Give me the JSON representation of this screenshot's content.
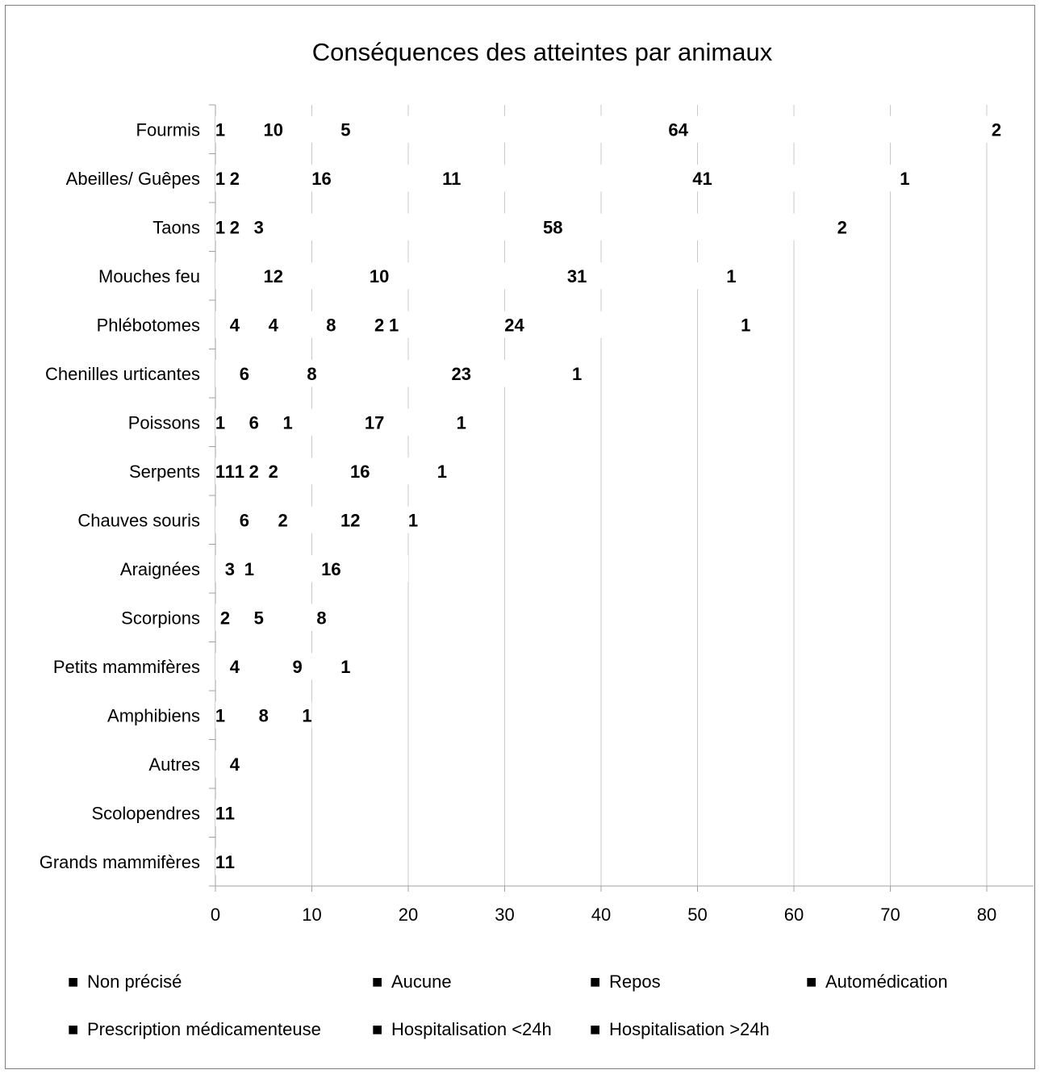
{
  "chart_data": {
    "type": "bar",
    "orientation": "horizontal",
    "stacked": true,
    "title": "Conséquences des atteintes par animaux",
    "xlabel": "",
    "ylabel": "",
    "xlim": [
      0,
      85
    ],
    "x_ticks": [
      0,
      10,
      20,
      30,
      40,
      50,
      60,
      70,
      80
    ],
    "grid": true,
    "legend_position": "bottom",
    "categories": [
      "Fourmis",
      "Abeilles/ Guêpes",
      "Taons",
      "Mouches feu",
      "Phlébotomes",
      "Chenilles urticantes",
      "Poissons",
      "Serpents",
      "Chauves souris",
      "Araignées",
      "Scorpions",
      "Petits mammifères",
      "Amphibiens",
      "Autres",
      "Scolopendres",
      "Grands mammifères"
    ],
    "series": [
      {
        "name": "Non précisé",
        "color": "#000000",
        "values": [
          1,
          1,
          1,
          0,
          0,
          0,
          1,
          1,
          0,
          0,
          0,
          0,
          1,
          0,
          1,
          1
        ]
      },
      {
        "name": "Aucune",
        "color": "#000000",
        "values": [
          10,
          2,
          2,
          0,
          4,
          6,
          6,
          1,
          6,
          3,
          2,
          4,
          8,
          4,
          1,
          1
        ]
      },
      {
        "name": "Repos",
        "color": "#000000",
        "values": [
          5,
          16,
          3,
          12,
          4,
          8,
          1,
          1,
          2,
          1,
          5,
          9,
          1,
          0,
          0,
          0
        ]
      },
      {
        "name": "Automédication",
        "color": "#000000",
        "values": [
          0,
          11,
          0,
          10,
          8,
          0,
          0,
          2,
          0,
          0,
          0,
          0,
          0,
          0,
          0,
          0
        ]
      },
      {
        "name": "Prescription médicamenteuse",
        "color": "#000000",
        "values": [
          64,
          41,
          58,
          31,
          2,
          23,
          17,
          2,
          12,
          16,
          8,
          1,
          0,
          0,
          0,
          0
        ]
      },
      {
        "name": "Hospitalisation <24h",
        "color": "#000000",
        "values": [
          0,
          0,
          0,
          0,
          1,
          0,
          0,
          16,
          0,
          0,
          0,
          0,
          0,
          0,
          0,
          0
        ]
      },
      {
        "name": "Hospitalisation >24h",
        "color": "#000000",
        "values": [
          2,
          1,
          2,
          1,
          24,
          1,
          1,
          1,
          1,
          0,
          0,
          0,
          0,
          0,
          0,
          0
        ]
      }
    ],
    "extra_labels": [
      {
        "category": "Phlébotomes",
        "value": 1
      }
    ]
  },
  "legend": {
    "marker": "■"
  }
}
